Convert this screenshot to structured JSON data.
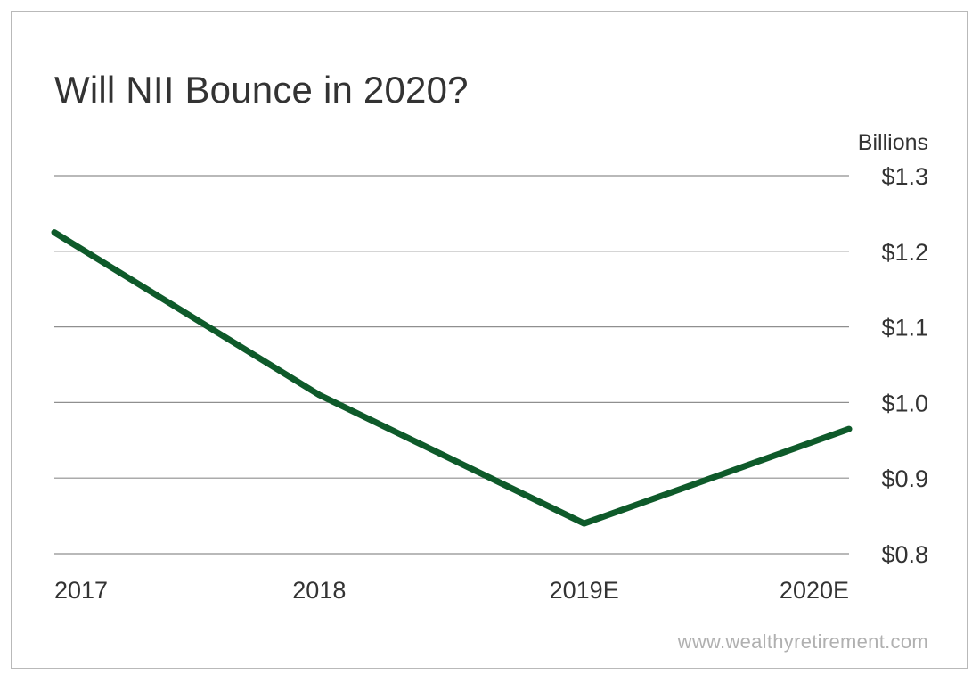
{
  "chart_data": {
    "type": "line",
    "title": "Will NII Bounce in 2020?",
    "unit_label": "Billions",
    "categories": [
      "2017",
      "2018",
      "2019E",
      "2020E"
    ],
    "series": [
      {
        "values": [
          1.225,
          1.01,
          0.84,
          0.965
        ],
        "color": "#0e5a2a"
      }
    ],
    "y_ticks": [
      1.3,
      1.2,
      1.1,
      1.0,
      0.9,
      0.8
    ],
    "y_tick_labels": [
      "$1.3",
      "$1.2",
      "$1.1",
      "$1.0",
      "$0.9",
      "$0.8"
    ],
    "ylim": [
      0.8,
      1.3
    ],
    "y_axis_position": "right",
    "grid": true,
    "gridline_color": "#8f8f8f",
    "source": "www.wealthyretirement.com"
  }
}
